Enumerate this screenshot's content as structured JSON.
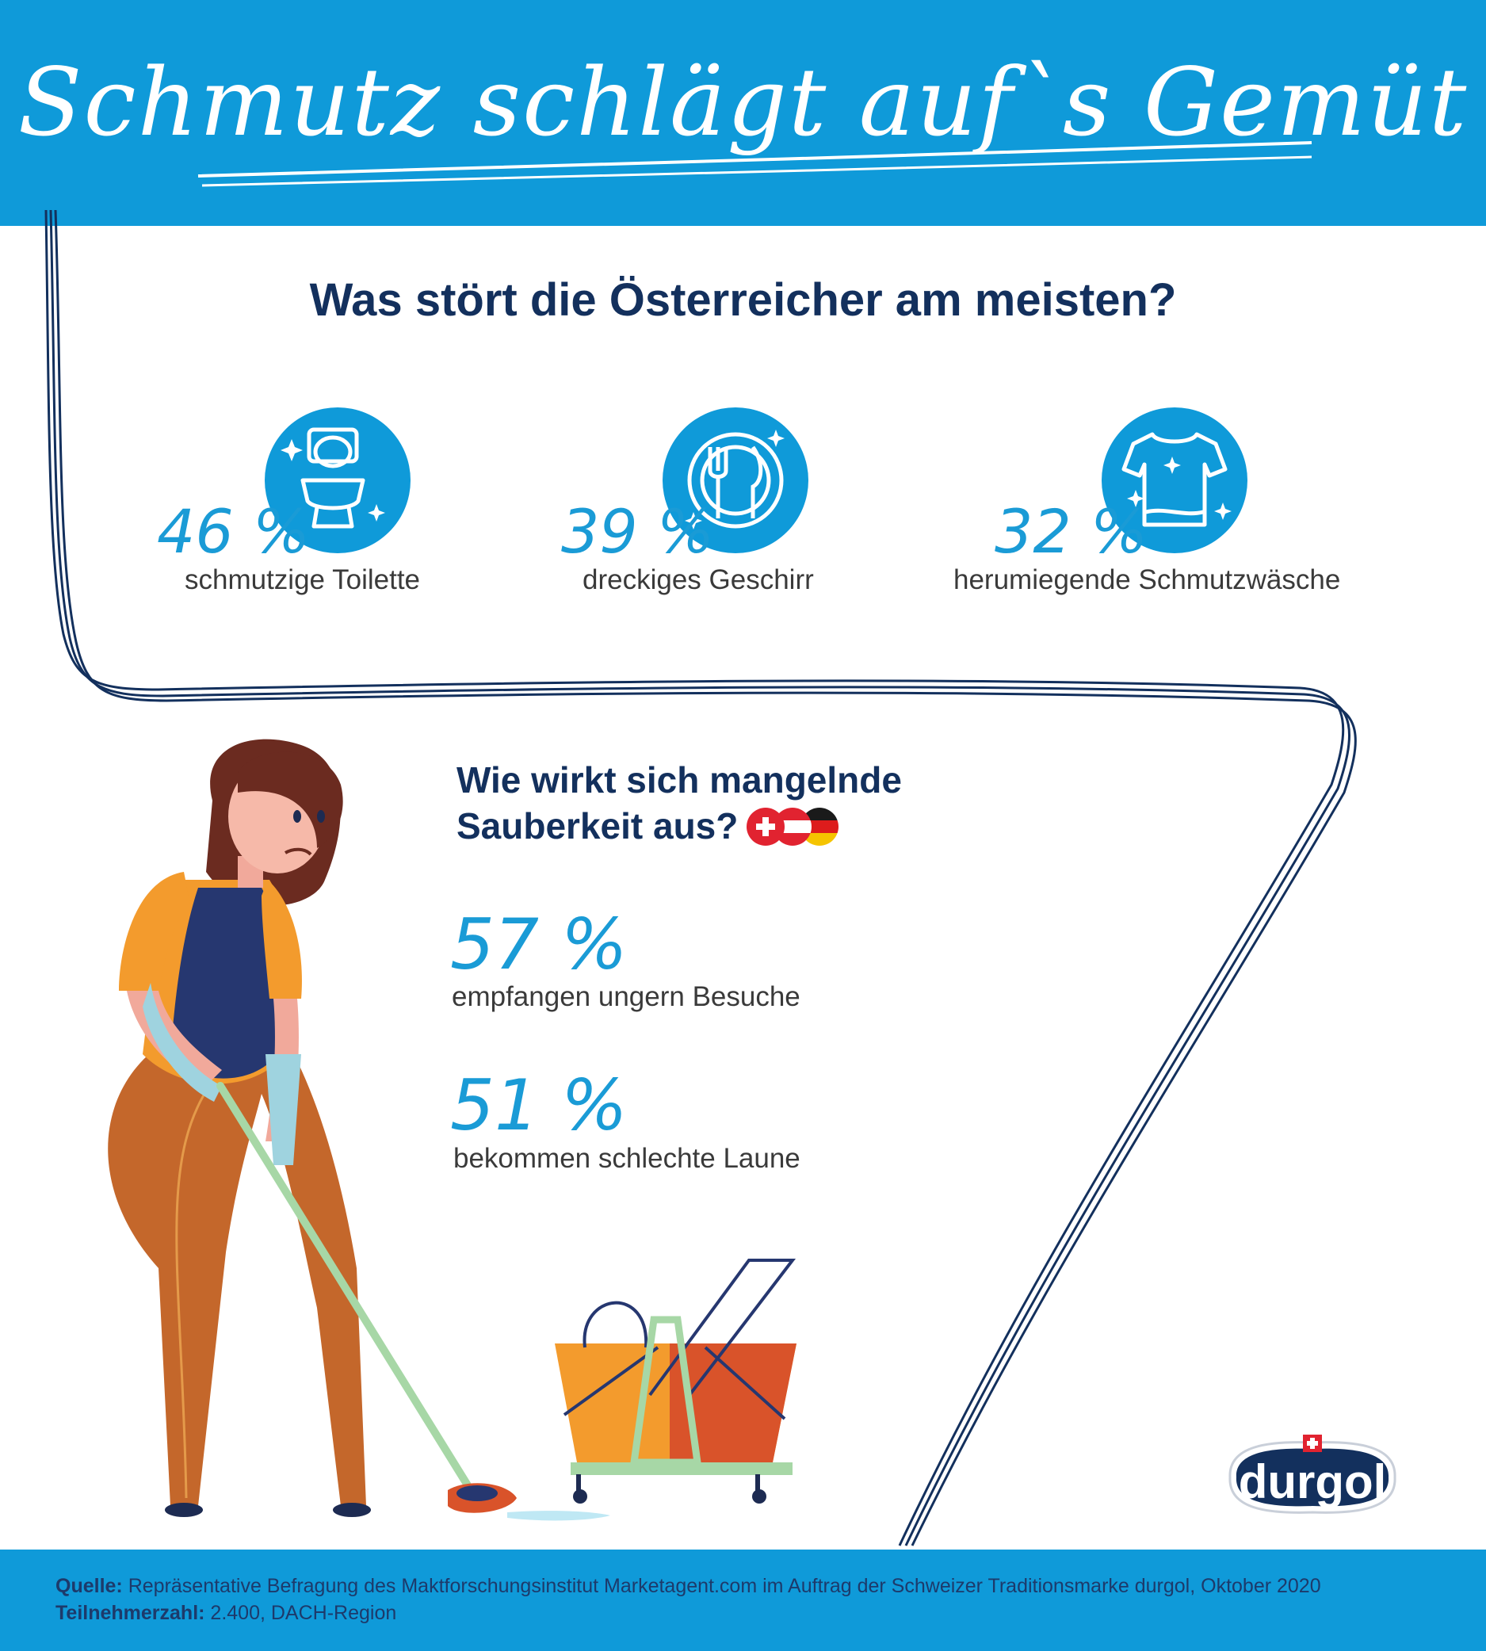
{
  "header": {
    "title": "Schmutz schlägt auf`s Gemüt"
  },
  "section1": {
    "heading": "Was stört die Österreicher am meisten?",
    "stats": [
      {
        "value": "46 %",
        "label": "schmutzige Toilette",
        "icon": "toilet-icon"
      },
      {
        "value": "39 %",
        "label": "dreckiges Geschirr",
        "icon": "plate-cutlery-icon"
      },
      {
        "value": "32 %",
        "label": "herumiegende Schmutzwäsche",
        "icon": "shirt-icon"
      }
    ]
  },
  "section2": {
    "heading_line1": "Wie wirkt sich mangelnde",
    "heading_line2": "Sauberkeit aus?",
    "flags": [
      "switzerland-flag",
      "austria-flag",
      "germany-flag"
    ],
    "stats": [
      {
        "value": "57 %",
        "label": "empfangen ungern Besuche"
      },
      {
        "value": "51 %",
        "label": "bekommen schlechte Laune"
      }
    ]
  },
  "logo": {
    "text": "durgol"
  },
  "footer": {
    "source_key": "Quelle:",
    "source_text": " Repräsentative Befragung des Maktforschungsinstitut Marketagent.com im Auftrag der Schweizer Traditionsmarke durgol, Oktober 2020",
    "participants_key": "Teilnehmerzahl:",
    "participants_text": " 2.400, DACH-Region"
  },
  "colors": {
    "brand_blue": "#0f9ad9",
    "navy": "#13305d",
    "accent_blue": "#1a9bd6"
  }
}
